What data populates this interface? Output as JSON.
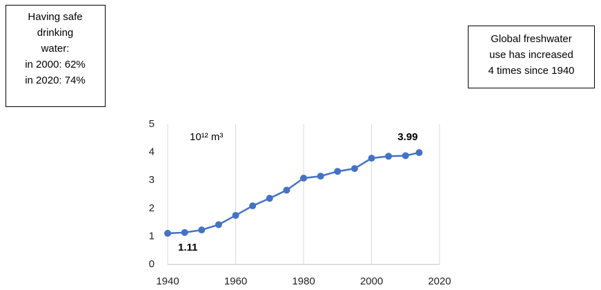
{
  "chart_data": {
    "type": "line",
    "x": [
      1940,
      1945,
      1950,
      1955,
      1960,
      1965,
      1970,
      1975,
      1980,
      1985,
      1990,
      1995,
      2000,
      2005,
      2010,
      2014
    ],
    "series": [
      {
        "color": "#4472c4",
        "values": [
          1.11,
          1.14,
          1.23,
          1.42,
          1.75,
          2.09,
          2.36,
          2.65,
          3.08,
          3.15,
          3.32,
          3.42,
          3.79,
          3.86,
          3.88,
          3.99
        ]
      }
    ],
    "xlim": [
      1940,
      2020
    ],
    "xticks": [
      1940,
      1960,
      1980,
      2000,
      2020
    ],
    "ylim": [
      0,
      5
    ],
    "yticks": [
      0,
      1,
      2,
      3,
      4,
      5
    ],
    "grid": "x",
    "unit_label": "10¹² m³",
    "annotations": [
      {
        "lines": [
          "Having safe",
          "drinking",
          "water:",
          "in 2000: 62%",
          "in 2020: 74%"
        ]
      },
      {
        "lines": [
          "Global freshwater",
          "use has increased",
          "4 times since 1940"
        ]
      }
    ]
  }
}
